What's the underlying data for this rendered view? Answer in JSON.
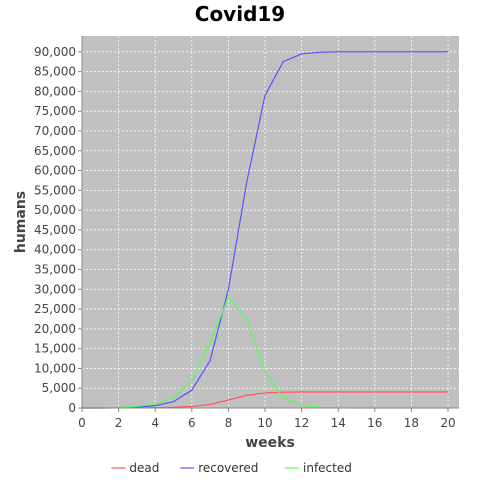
{
  "chart_data": {
    "type": "line",
    "title": "Covid19",
    "xlabel": "weeks",
    "ylabel": "humans",
    "xlim": [
      0,
      20.6
    ],
    "ylim": [
      0,
      94000
    ],
    "x_ticks": [
      0,
      2,
      4,
      6,
      8,
      10,
      12,
      14,
      16,
      18,
      20
    ],
    "y_ticks": [
      0,
      5000,
      10000,
      15000,
      20000,
      25000,
      30000,
      35000,
      40000,
      45000,
      50000,
      55000,
      60000,
      65000,
      70000,
      75000,
      80000,
      85000,
      90000
    ],
    "y_tick_labels": [
      "0",
      "5,000",
      "10,000",
      "15,000",
      "20,000",
      "25,000",
      "30,000",
      "35,000",
      "40,000",
      "45,000",
      "50,000",
      "55,000",
      "60,000",
      "65,000",
      "70,000",
      "75,000",
      "80,000",
      "85,000",
      "90,000"
    ],
    "grid": true,
    "legend_position": "bottom",
    "background_color": "#c0c0c0",
    "x": [
      0,
      1,
      2,
      3,
      4,
      5,
      6,
      7,
      8,
      9,
      10,
      11,
      12,
      13,
      14,
      15,
      16,
      17,
      18,
      19,
      20
    ],
    "series": [
      {
        "name": "dead",
        "color": "#ff5555",
        "values": [
          0,
          0,
          10,
          30,
          80,
          180,
          400,
          900,
          2000,
          3200,
          3800,
          4000,
          4050,
          4050,
          4050,
          4050,
          4050,
          4050,
          4050,
          4050,
          4050
        ]
      },
      {
        "name": "recovered",
        "color": "#5555ff",
        "values": [
          0,
          0,
          50,
          200,
          600,
          1600,
          4500,
          12000,
          30000,
          57000,
          79000,
          87500,
          89500,
          89900,
          90000,
          90000,
          90000,
          90000,
          90000,
          90000,
          90000
        ]
      },
      {
        "name": "infected",
        "color": "#55ff55",
        "values": [
          0,
          50,
          150,
          400,
          1000,
          2500,
          7000,
          16500,
          28000,
          22500,
          9000,
          2500,
          700,
          200,
          50,
          0,
          0,
          0,
          0,
          0,
          0
        ]
      }
    ]
  }
}
